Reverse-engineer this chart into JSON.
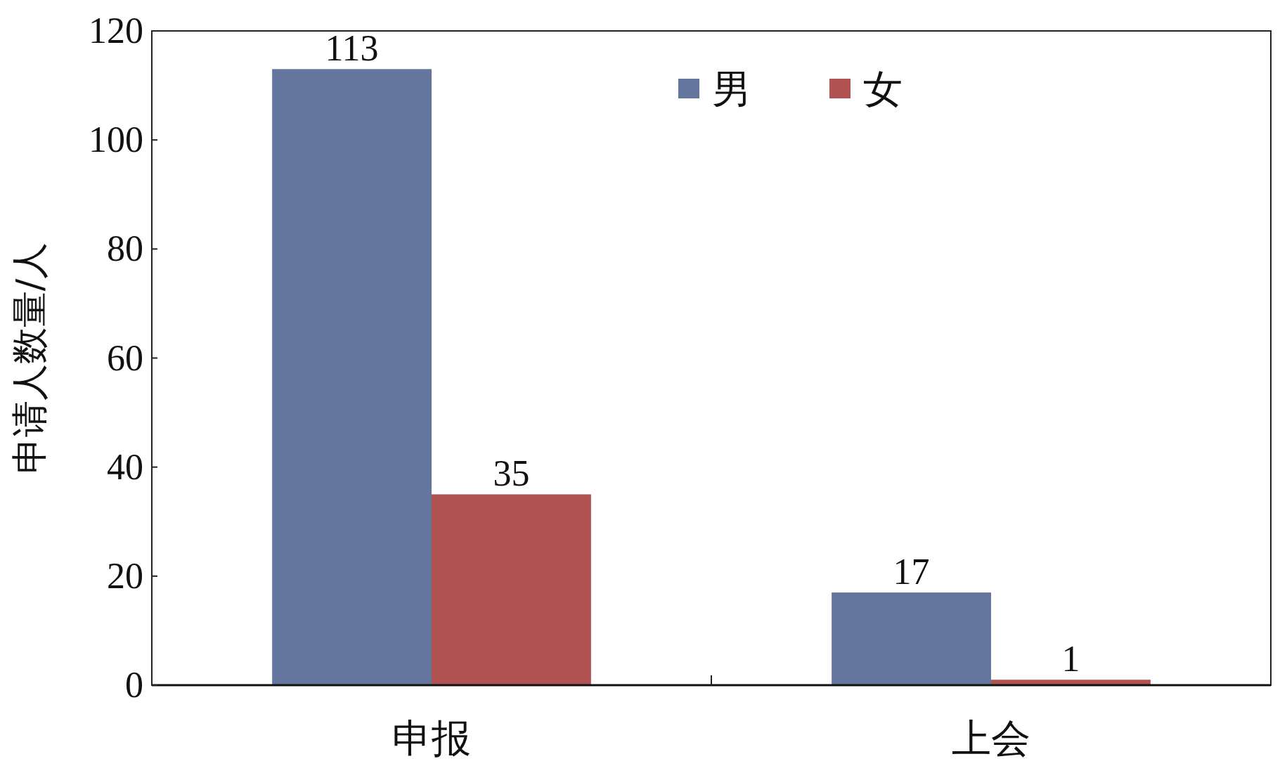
{
  "chart_data": {
    "type": "bar",
    "ylabel": "申请人数量/人",
    "categories": [
      "申报",
      "上会"
    ],
    "series": [
      {
        "name": "男",
        "color": "#64769e",
        "values": [
          113,
          17
        ]
      },
      {
        "name": "女",
        "color": "#b05252",
        "values": [
          35,
          1
        ]
      }
    ],
    "ylim": [
      0,
      120
    ],
    "yticks": [
      0,
      20,
      40,
      60,
      80,
      100,
      120
    ],
    "data_labels": true,
    "legend": "top",
    "grid": false
  }
}
